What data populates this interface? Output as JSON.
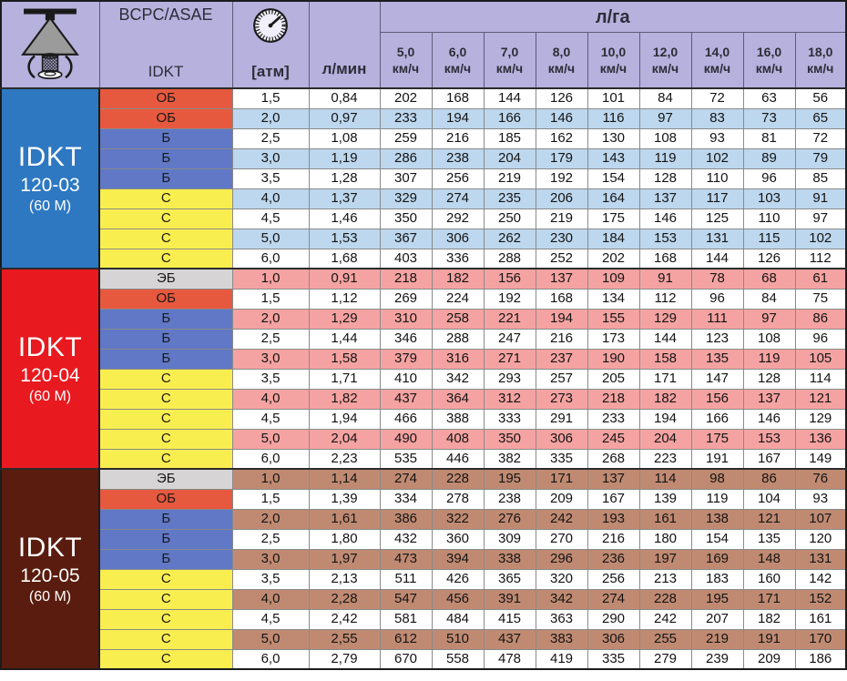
{
  "header": {
    "standard_label": "BCPC/ASAE",
    "series_label": "IDKT",
    "pressure_unit": "[атм]",
    "flow_unit": "л/мин",
    "rate_unit": "л/га",
    "speed_unit": "км/ч",
    "speeds": [
      "5,0",
      "6,0",
      "7,0",
      "8,0",
      "10,0",
      "12,0",
      "14,0",
      "16,0",
      "18,0"
    ],
    "icons": [
      "spray-nozzle-icon",
      "pressure-gauge-icon"
    ]
  },
  "colors": {
    "header_bg": "#b6b1dd",
    "grid_line": "#8a8a8a",
    "row_white": "#ffffff",
    "types": {
      "ОБ": "#e6593f",
      "Б": "#6078c6",
      "С": "#f9ee4f",
      "ЭБ": "#d6d4d4"
    }
  },
  "sections": [
    {
      "series": "IDKT",
      "model": "120-03",
      "note": "(60 M)",
      "title_bg": "#2e78c2",
      "stripe_color": "#bdd7ee",
      "shaded_rows": "odd",
      "rows": [
        {
          "type": "ОБ",
          "pressure": "1,5",
          "flow": "0,84",
          "rates": [
            202,
            168,
            144,
            126,
            101,
            84,
            72,
            63,
            56
          ]
        },
        {
          "type": "ОБ",
          "pressure": "2,0",
          "flow": "0,97",
          "rates": [
            233,
            194,
            166,
            146,
            116,
            97,
            83,
            73,
            65
          ]
        },
        {
          "type": "Б",
          "pressure": "2,5",
          "flow": "1,08",
          "rates": [
            259,
            216,
            185,
            162,
            130,
            108,
            93,
            81,
            72
          ]
        },
        {
          "type": "Б",
          "pressure": "3,0",
          "flow": "1,19",
          "rates": [
            286,
            238,
            204,
            179,
            143,
            119,
            102,
            89,
            79
          ]
        },
        {
          "type": "Б",
          "pressure": "3,5",
          "flow": "1,28",
          "rates": [
            307,
            256,
            219,
            192,
            154,
            128,
            110,
            96,
            85
          ]
        },
        {
          "type": "С",
          "pressure": "4,0",
          "flow": "1,37",
          "rates": [
            329,
            274,
            235,
            206,
            164,
            137,
            117,
            103,
            91
          ]
        },
        {
          "type": "С",
          "pressure": "4,5",
          "flow": "1,46",
          "rates": [
            350,
            292,
            250,
            219,
            175,
            146,
            125,
            110,
            97
          ]
        },
        {
          "type": "С",
          "pressure": "5,0",
          "flow": "1,53",
          "rates": [
            367,
            306,
            262,
            230,
            184,
            153,
            131,
            115,
            102
          ]
        },
        {
          "type": "С",
          "pressure": "6,0",
          "flow": "1,68",
          "rates": [
            403,
            336,
            288,
            252,
            202,
            168,
            144,
            126,
            112
          ]
        }
      ]
    },
    {
      "series": "IDKT",
      "model": "120-04",
      "note": "(60 M)",
      "title_bg": "#e8191f",
      "stripe_color": "#f5a3a2",
      "shaded_rows": "even",
      "rows": [
        {
          "type": "ЭБ",
          "pressure": "1,0",
          "flow": "0,91",
          "rates": [
            218,
            182,
            156,
            137,
            109,
            91,
            78,
            68,
            61
          ]
        },
        {
          "type": "ОБ",
          "pressure": "1,5",
          "flow": "1,12",
          "rates": [
            269,
            224,
            192,
            168,
            134,
            112,
            96,
            84,
            75
          ]
        },
        {
          "type": "Б",
          "pressure": "2,0",
          "flow": "1,29",
          "rates": [
            310,
            258,
            221,
            194,
            155,
            129,
            111,
            97,
            86
          ]
        },
        {
          "type": "Б",
          "pressure": "2,5",
          "flow": "1,44",
          "rates": [
            346,
            288,
            247,
            216,
            173,
            144,
            123,
            108,
            96
          ]
        },
        {
          "type": "Б",
          "pressure": "3,0",
          "flow": "1,58",
          "rates": [
            379,
            316,
            271,
            237,
            190,
            158,
            135,
            119,
            105
          ]
        },
        {
          "type": "С",
          "pressure": "3,5",
          "flow": "1,71",
          "rates": [
            410,
            342,
            293,
            257,
            205,
            171,
            147,
            128,
            114
          ]
        },
        {
          "type": "С",
          "pressure": "4,0",
          "flow": "1,82",
          "rates": [
            437,
            364,
            312,
            273,
            218,
            182,
            156,
            137,
            121
          ]
        },
        {
          "type": "С",
          "pressure": "4,5",
          "flow": "1,94",
          "rates": [
            466,
            388,
            333,
            291,
            233,
            194,
            166,
            146,
            129
          ]
        },
        {
          "type": "С",
          "pressure": "5,0",
          "flow": "2,04",
          "rates": [
            490,
            408,
            350,
            306,
            245,
            204,
            175,
            153,
            136
          ]
        },
        {
          "type": "С",
          "pressure": "6,0",
          "flow": "2,23",
          "rates": [
            535,
            446,
            382,
            335,
            268,
            223,
            191,
            167,
            149
          ]
        }
      ]
    },
    {
      "series": "IDKT",
      "model": "120-05",
      "note": "(60 M)",
      "title_bg": "#5a1c0e",
      "stripe_color": "#c08a72",
      "shaded_rows": "even",
      "rows": [
        {
          "type": "ЭБ",
          "pressure": "1,0",
          "flow": "1,14",
          "rates": [
            274,
            228,
            195,
            171,
            137,
            114,
            98,
            86,
            76
          ]
        },
        {
          "type": "ОБ",
          "pressure": "1,5",
          "flow": "1,39",
          "rates": [
            334,
            278,
            238,
            209,
            167,
            139,
            119,
            104,
            93
          ]
        },
        {
          "type": "Б",
          "pressure": "2,0",
          "flow": "1,61",
          "rates": [
            386,
            322,
            276,
            242,
            193,
            161,
            138,
            121,
            107
          ]
        },
        {
          "type": "Б",
          "pressure": "2,5",
          "flow": "1,80",
          "rates": [
            432,
            360,
            309,
            270,
            216,
            180,
            154,
            135,
            120
          ]
        },
        {
          "type": "Б",
          "pressure": "3,0",
          "flow": "1,97",
          "rates": [
            473,
            394,
            338,
            296,
            236,
            197,
            169,
            148,
            131
          ]
        },
        {
          "type": "С",
          "pressure": "3,5",
          "flow": "2,13",
          "rates": [
            511,
            426,
            365,
            320,
            256,
            213,
            183,
            160,
            142
          ]
        },
        {
          "type": "С",
          "pressure": "4,0",
          "flow": "2,28",
          "rates": [
            547,
            456,
            391,
            342,
            274,
            228,
            195,
            171,
            152
          ]
        },
        {
          "type": "С",
          "pressure": "4,5",
          "flow": "2,42",
          "rates": [
            581,
            484,
            415,
            363,
            290,
            242,
            207,
            182,
            161
          ]
        },
        {
          "type": "С",
          "pressure": "5,0",
          "flow": "2,55",
          "rates": [
            612,
            510,
            437,
            383,
            306,
            255,
            219,
            191,
            170
          ]
        },
        {
          "type": "С",
          "pressure": "6,0",
          "flow": "2,79",
          "rates": [
            670,
            558,
            478,
            419,
            335,
            279,
            239,
            209,
            186
          ]
        }
      ]
    }
  ]
}
